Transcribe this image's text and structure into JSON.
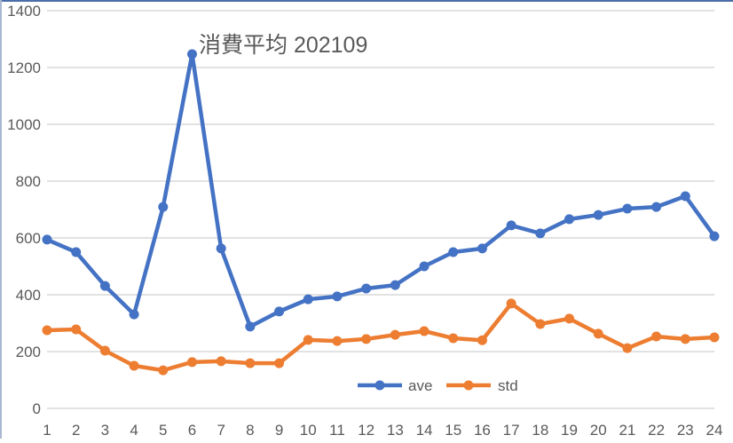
{
  "chart_data": {
    "type": "line",
    "title": "消費平均 202109",
    "xlabel": "",
    "ylabel": "",
    "categories": [
      "1",
      "2",
      "3",
      "4",
      "5",
      "6",
      "7",
      "8",
      "9",
      "10",
      "11",
      "12",
      "13",
      "14",
      "15",
      "16",
      "17",
      "18",
      "19",
      "20",
      "21",
      "22",
      "23",
      "24"
    ],
    "series": [
      {
        "name": "ave",
        "color": "#4472c4",
        "values": [
          594,
          550,
          431,
          331,
          709,
          1247,
          563,
          288,
          341,
          384,
          394,
          422,
          434,
          500,
          550,
          563,
          644,
          616,
          666,
          681,
          703,
          709,
          747,
          606
        ]
      },
      {
        "name": "std",
        "color": "#ed7d31",
        "values": [
          275,
          278,
          203,
          150,
          134,
          163,
          166,
          159,
          159,
          241,
          237,
          244,
          259,
          272,
          247,
          240,
          369,
          297,
          316,
          263,
          212,
          253,
          244,
          250
        ]
      }
    ],
    "ylim": [
      0,
      1400
    ],
    "yticks": [
      0,
      200,
      400,
      600,
      800,
      1000,
      1200,
      1400
    ],
    "grid": true,
    "legend_position": "bottom-inside",
    "markers": true
  }
}
